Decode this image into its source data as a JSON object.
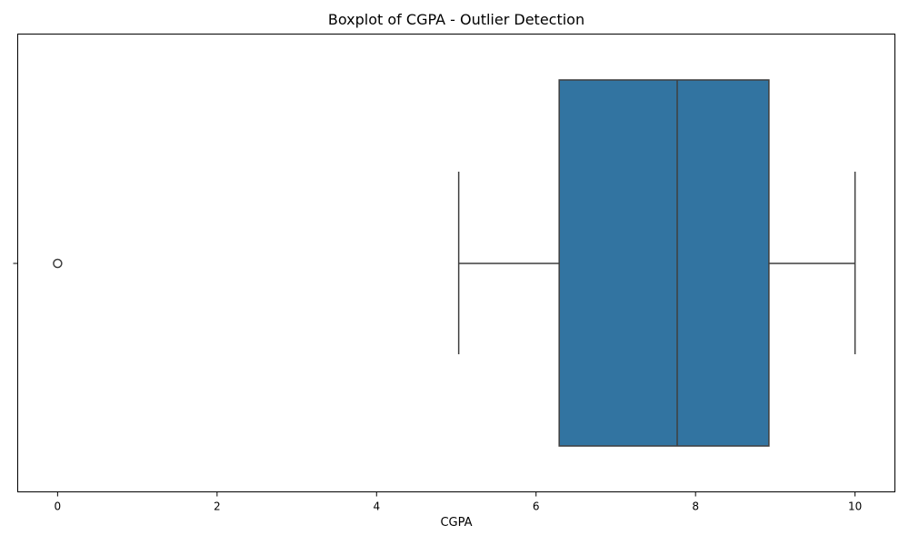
{
  "chart_data": {
    "type": "boxplot",
    "title": "Boxplot of CGPA - Outlier Detection",
    "xlabel": "CGPA",
    "ylabel": "",
    "xlim": [
      -0.5,
      10.5
    ],
    "xticks": [
      0,
      2,
      4,
      6,
      8,
      10
    ],
    "xtick_labels": [
      "0",
      "2",
      "4",
      "6",
      "8",
      "10"
    ],
    "grid": false,
    "box": {
      "whisker_low": 5.03,
      "q1": 6.29,
      "median": 7.77,
      "q3": 8.92,
      "whisker_high": 10.0,
      "fill_color": "#3274a1",
      "line_color": "#3f3f3f"
    },
    "outliers": [
      0.0
    ]
  }
}
